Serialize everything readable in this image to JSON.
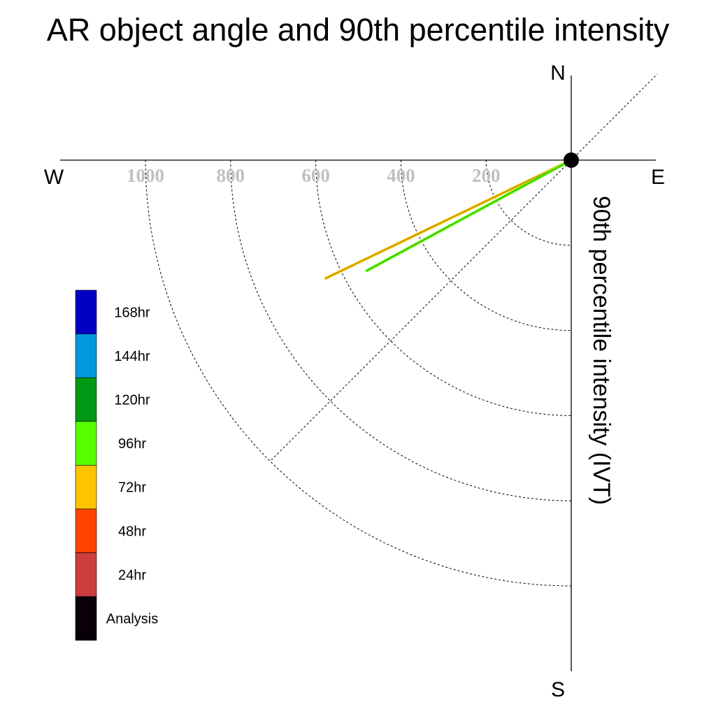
{
  "chart_data": {
    "type": "polar-vector",
    "title": "AR object angle and 90th percentile intensity",
    "axis_label": "90th percentile intensity (IVT)",
    "compass": {
      "north": "N",
      "south": "S",
      "east": "E",
      "west": "W"
    },
    "radial_ticks": [
      200,
      400,
      600,
      800,
      1000
    ],
    "rlim": [
      0,
      1000
    ],
    "grid": true,
    "legend_placement": "left",
    "legend": [
      {
        "label": "168hr",
        "color": "#0000c4"
      },
      {
        "label": "144hr",
        "color": "#0099dd"
      },
      {
        "label": "120hr",
        "color": "#009915"
      },
      {
        "label": "96hr",
        "color": "#55ff00"
      },
      {
        "label": "72hr",
        "color": "#ffc400"
      },
      {
        "label": "48hr",
        "color": "#ff4400"
      },
      {
        "label": "24hr",
        "color": "#cc3d3d"
      },
      {
        "label": "Analysis",
        "color": "#0a000a"
      }
    ],
    "series": [
      {
        "name": "72hr",
        "color": "#ffc400",
        "intensity": 640,
        "angle_below_west_deg": 25.7
      },
      {
        "name": "96hr",
        "color": "#55ff00",
        "intensity": 546,
        "angle_below_west_deg": 28.4
      }
    ]
  }
}
